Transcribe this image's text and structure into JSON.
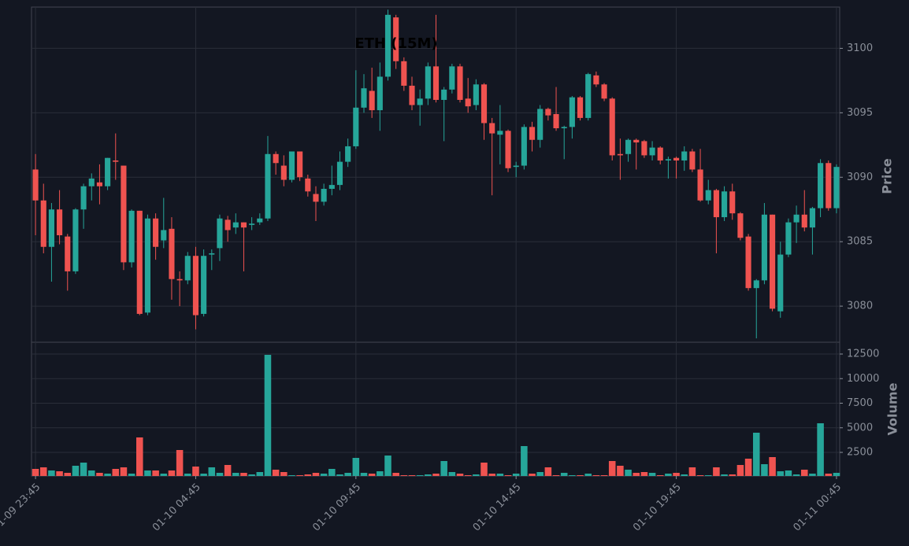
{
  "chart_data": {
    "type": "candlestick",
    "title": "ETH (15M)",
    "ylabel": "Price",
    "y2label": "Volume",
    "up_color": "#26a69a",
    "down_color": "#ef5350",
    "grid": true,
    "xlim": [
      -0.5,
      100.4
    ],
    "xticks": [
      {
        "value": 0,
        "label": "01-09 23:45"
      },
      {
        "value": 20,
        "label": "01-10 04:45"
      },
      {
        "value": 40,
        "label": "01-10 09:45"
      },
      {
        "value": 60,
        "label": "01-10 14:45"
      },
      {
        "value": 80,
        "label": "01-10 19:45"
      },
      {
        "value": 100,
        "label": "01-11 00:45"
      }
    ],
    "ylim": [
      3077.2,
      3103.2
    ],
    "yticks": [
      3080,
      3085,
      3090,
      3095,
      3100
    ],
    "y2lim": [
      100,
      13700
    ],
    "y2ticks": [
      2500,
      5000,
      7500,
      10000,
      12500
    ],
    "open": [
      3090.6,
      3088.2,
      3084.6,
      3087.5,
      3085.4,
      3082.7,
      3087.5,
      3089.3,
      3089.6,
      3089.3,
      3091.3,
      3090.9,
      3083.4,
      3087.4,
      3079.5,
      3086.8,
      3085.1,
      3086.0,
      3082.1,
      3082.0,
      3083.9,
      3079.4,
      3084.0,
      3084.5,
      3086.7,
      3086.1,
      3086.5,
      3086.3,
      3086.5,
      3086.8,
      3091.8,
      3090.9,
      3089.8,
      3092.0,
      3089.9,
      3088.7,
      3088.1,
      3089.1,
      3089.4,
      3091.2,
      3092.4,
      3095.4,
      3096.7,
      3095.2,
      3097.8,
      3102.4,
      3099.0,
      3097.1,
      3095.6,
      3096.1,
      3098.6,
      3096.0,
      3096.8,
      3098.6,
      3096.1,
      3095.6,
      3097.2,
      3094.2,
      3093.3,
      3093.6,
      3090.8,
      3090.9,
      3093.9,
      3092.9,
      3095.3,
      3094.9,
      3093.8,
      3093.9,
      3096.2,
      3094.6,
      3097.9,
      3097.2,
      3096.1,
      3091.8,
      3091.8,
      3092.9,
      3092.8,
      3091.7,
      3092.3,
      3091.3,
      3091.5,
      3091.3,
      3092.0,
      3090.6,
      3088.2,
      3089.0,
      3086.9,
      3088.9,
      3087.2,
      3085.4,
      3081.4,
      3082.0,
      3087.1,
      3079.6,
      3084.0,
      3086.5,
      3087.1,
      3086.1,
      3087.6,
      3091.1,
      3087.6
    ],
    "high": [
      3091.8,
      3089.5,
      3088.0,
      3089.0,
      3085.6,
      3087.6,
      3089.5,
      3090.3,
      3091.0,
      3091.5,
      3093.4,
      3090.9,
      3087.5,
      3087.4,
      3087.1,
      3087.2,
      3088.4,
      3086.9,
      3082.7,
      3084.2,
      3084.6,
      3084.4,
      3084.4,
      3087.1,
      3087.0,
      3087.2,
      3086.5,
      3086.9,
      3087.2,
      3093.2,
      3092.0,
      3091.7,
      3092.0,
      3092.0,
      3090.2,
      3089.3,
      3089.5,
      3090.9,
      3092.0,
      3093.0,
      3098.3,
      3098.0,
      3098.5,
      3098.9,
      3103.0,
      3102.6,
      3099.3,
      3097.8,
      3096.8,
      3098.9,
      3102.6,
      3097.0,
      3098.8,
      3098.8,
      3097.7,
      3097.6,
      3097.3,
      3094.6,
      3095.6,
      3093.7,
      3091.2,
      3094.1,
      3094.3,
      3095.6,
      3095.4,
      3097.0,
      3094.0,
      3096.3,
      3096.3,
      3098.1,
      3098.2,
      3097.3,
      3096.2,
      3093.0,
      3093.0,
      3093.0,
      3092.9,
      3092.8,
      3092.4,
      3091.6,
      3091.6,
      3092.4,
      3092.2,
      3092.2,
      3089.8,
      3089.1,
      3089.3,
      3089.5,
      3087.3,
      3085.6,
      3082.1,
      3088.0,
      3087.1,
      3085.0,
      3086.8,
      3087.8,
      3089.0,
      3087.7,
      3091.4,
      3091.3,
      3091.0
    ],
    "low": [
      3085.5,
      3084.1,
      3081.9,
      3084.8,
      3081.2,
      3082.5,
      3086.0,
      3088.2,
      3087.9,
      3089.0,
      3089.8,
      3082.8,
      3083.0,
      3079.3,
      3079.3,
      3083.6,
      3084.5,
      3080.5,
      3080.0,
      3081.7,
      3078.2,
      3079.2,
      3082.8,
      3083.5,
      3085.0,
      3085.6,
      3082.7,
      3085.9,
      3086.3,
      3086.6,
      3090.2,
      3089.3,
      3089.6,
      3089.7,
      3088.5,
      3086.6,
      3087.8,
      3088.6,
      3089.0,
      3090.8,
      3092.2,
      3095.0,
      3094.6,
      3093.6,
      3097.5,
      3098.4,
      3096.7,
      3095.2,
      3094.0,
      3095.6,
      3095.8,
      3092.8,
      3096.5,
      3095.8,
      3095.0,
      3095.2,
      3092.9,
      3088.6,
      3091.0,
      3090.4,
      3090.0,
      3090.6,
      3092.0,
      3092.3,
      3094.4,
      3093.6,
      3091.4,
      3093.0,
      3094.4,
      3094.4,
      3097.0,
      3095.9,
      3091.3,
      3089.8,
      3091.2,
      3090.6,
      3091.5,
      3091.3,
      3091.0,
      3089.9,
      3089.9,
      3090.5,
      3090.4,
      3088.1,
      3087.9,
      3084.1,
      3086.6,
      3086.7,
      3085.1,
      3081.2,
      3077.5,
      3081.7,
      3079.6,
      3079.1,
      3083.8,
      3084.9,
      3085.8,
      3084.0,
      3086.9,
      3087.4,
      3087.2
    ],
    "close": [
      3088.2,
      3084.6,
      3087.5,
      3085.5,
      3082.7,
      3087.5,
      3089.3,
      3089.9,
      3089.3,
      3091.5,
      3091.2,
      3083.4,
      3087.4,
      3079.4,
      3086.8,
      3084.6,
      3085.9,
      3082.1,
      3082.0,
      3083.9,
      3079.3,
      3083.9,
      3084.1,
      3086.8,
      3085.9,
      3086.5,
      3086.1,
      3086.4,
      3086.8,
      3091.8,
      3091.1,
      3089.8,
      3092.0,
      3090.0,
      3088.9,
      3088.1,
      3089.1,
      3089.4,
      3091.2,
      3092.4,
      3095.4,
      3096.9,
      3095.2,
      3097.8,
      3102.6,
      3099.0,
      3097.1,
      3095.6,
      3096.1,
      3098.6,
      3096.0,
      3096.8,
      3098.6,
      3096.0,
      3095.5,
      3097.2,
      3094.2,
      3093.4,
      3093.6,
      3090.7,
      3090.9,
      3093.9,
      3092.9,
      3095.3,
      3094.8,
      3093.8,
      3093.9,
      3096.2,
      3094.6,
      3098.0,
      3097.2,
      3096.1,
      3091.7,
      3091.7,
      3092.9,
      3092.7,
      3091.7,
      3092.3,
      3091.3,
      3091.4,
      3091.3,
      3092.0,
      3090.6,
      3088.2,
      3089.0,
      3086.9,
      3088.9,
      3087.2,
      3085.3,
      3081.4,
      3082.0,
      3087.1,
      3079.8,
      3084.0,
      3086.5,
      3087.1,
      3086.1,
      3087.6,
      3091.1,
      3087.6,
      3090.8
    ],
    "volume": [
      820,
      980,
      660,
      580,
      420,
      1140,
      1460,
      660,
      420,
      340,
      820,
      980,
      340,
      4020,
      660,
      660,
      340,
      660,
      2740,
      340,
      1060,
      340,
      980,
      420,
      1220,
      420,
      420,
      260,
      500,
      12420,
      740,
      500,
      180,
      180,
      260,
      420,
      340,
      820,
      260,
      420,
      1940,
      420,
      340,
      580,
      2180,
      420,
      180,
      180,
      180,
      260,
      340,
      1620,
      500,
      340,
      180,
      260,
      1460,
      340,
      340,
      180,
      340,
      3140,
      340,
      500,
      980,
      180,
      420,
      180,
      180,
      340,
      180,
      180,
      1620,
      1140,
      740,
      420,
      500,
      420,
      180,
      340,
      420,
      260,
      980,
      180,
      180,
      980,
      260,
      260,
      1220,
      1860,
      4500,
      1300,
      2020,
      580,
      660,
      260,
      740,
      340,
      5460,
      340,
      420
    ]
  }
}
